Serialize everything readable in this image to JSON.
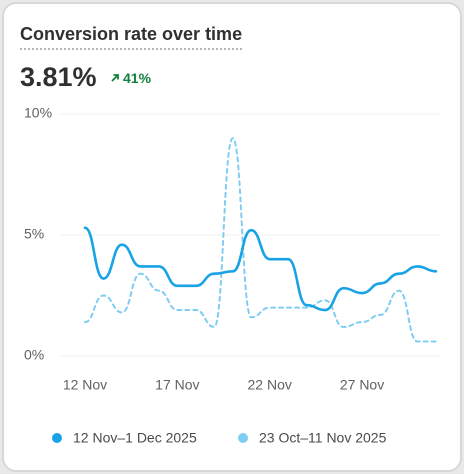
{
  "header": {
    "title": "Conversion rate over time",
    "metric": "3.81%",
    "change": "41%"
  },
  "chart_data": {
    "type": "line",
    "categories": [
      "12 Nov",
      null,
      null,
      null,
      null,
      "17 Nov",
      null,
      null,
      null,
      null,
      "22 Nov",
      null,
      null,
      null,
      null,
      "27 Nov",
      null,
      null,
      null,
      null
    ],
    "series": [
      {
        "name": "12 Nov–1 Dec 2025",
        "color": "#17a3e6",
        "dashed": false,
        "values": [
          5.3,
          3.2,
          4.6,
          3.7,
          3.7,
          2.9,
          2.9,
          3.4,
          3.5,
          5.2,
          4.0,
          4.0,
          2.1,
          1.9,
          2.8,
          2.6,
          3.0,
          3.4,
          3.7,
          3.5
        ]
      },
      {
        "name": "23 Oct–11 Nov 2025",
        "color": "#80cdf2",
        "dashed": true,
        "values": [
          1.4,
          2.5,
          1.8,
          3.4,
          2.7,
          1.9,
          1.9,
          1.2,
          9.0,
          1.6,
          2.0,
          2.0,
          2.0,
          2.3,
          1.2,
          1.4,
          1.7,
          2.7,
          0.6,
          0.6
        ]
      }
    ],
    "ylim": [
      0,
      10
    ],
    "yticks": [
      {
        "value": 0,
        "label": "0%"
      },
      {
        "value": 5,
        "label": "5%"
      },
      {
        "value": 10,
        "label": "10%"
      }
    ],
    "grid": true
  }
}
